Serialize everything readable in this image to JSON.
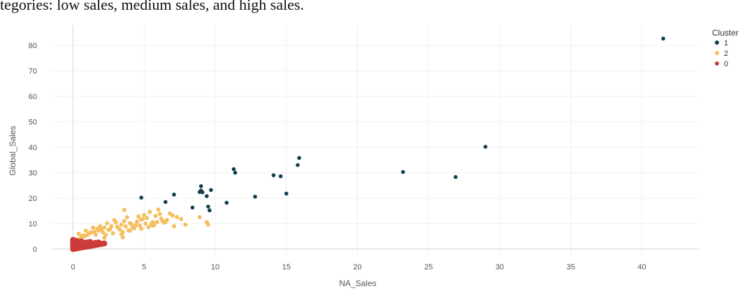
{
  "intro": {
    "text": "tegories: low sales, medium sales, and high sales."
  },
  "chart_data": {
    "type": "scatter",
    "xlabel": "NA_Sales",
    "ylabel": "Global_Sales",
    "xlim": [
      -1.5,
      44
    ],
    "ylim": [
      -2.5,
      88
    ],
    "x_ticks": [
      0,
      5,
      10,
      15,
      20,
      25,
      30,
      35,
      40
    ],
    "y_ticks": [
      0,
      10,
      20,
      30,
      40,
      50,
      60,
      70,
      80
    ],
    "grid": true,
    "legend_title": "Cluster",
    "legend_position": "top-right",
    "series": [
      {
        "name": "1",
        "color": "#143d4d",
        "x": [
          41.5,
          29.0,
          26.9,
          23.2,
          15.9,
          15.8,
          15.0,
          14.6,
          14.1,
          12.8,
          11.4,
          11.3,
          10.8,
          9.7,
          9.6,
          9.5,
          9.4,
          9.1,
          9.0,
          9.0,
          8.9,
          8.4,
          7.1,
          6.5,
          4.8
        ],
        "y": [
          82.7,
          40.2,
          28.3,
          30.3,
          35.8,
          33.0,
          21.8,
          28.6,
          29.0,
          20.6,
          30.0,
          31.4,
          18.2,
          23.2,
          15.2,
          16.7,
          20.8,
          22.3,
          24.7,
          23.0,
          22.4,
          16.3,
          21.4,
          18.5,
          20.2
        ]
      },
      {
        "name": "2",
        "color": "#f5bf5f",
        "x": [
          0.3,
          0.5,
          0.8,
          1.0,
          1.2,
          1.5,
          1.8,
          2.0,
          2.2,
          2.5,
          2.7,
          3.0,
          3.2,
          3.4,
          3.6,
          3.8,
          4.0,
          4.2,
          4.4,
          4.6,
          4.8,
          5.0,
          5.2,
          5.4,
          5.6,
          5.8,
          6.0,
          6.2,
          6.5,
          6.8,
          7.0,
          7.3,
          7.6,
          7.9,
          0.4,
          0.9,
          1.4,
          1.9,
          2.4,
          2.9,
          3.3,
          3.7,
          4.1,
          4.5,
          4.9,
          5.3,
          5.7,
          6.1,
          6.6,
          7.1,
          0.6,
          1.1,
          1.6,
          2.1,
          2.6,
          3.1,
          3.5,
          3.9,
          4.3,
          4.7,
          5.1,
          5.5,
          5.9,
          6.3,
          0.2,
          0.7,
          1.3,
          1.7,
          2.3,
          2.8,
          3.4,
          3.6,
          4.0,
          4.8,
          5.6,
          6.4,
          9.4,
          9.5,
          8.9,
          3.5,
          2.2
        ],
        "y": [
          3.6,
          4.2,
          5.0,
          5.5,
          6.3,
          6.8,
          7.2,
          7.9,
          8.5,
          7.5,
          9.0,
          10.5,
          8.2,
          9.6,
          11.0,
          12.5,
          10.2,
          8.4,
          9.4,
          12.8,
          11.6,
          13.4,
          12.2,
          14.6,
          10.6,
          13.0,
          15.5,
          12.0,
          10.6,
          14.0,
          13.2,
          12.6,
          11.8,
          9.6,
          6.0,
          7.2,
          8.4,
          9.0,
          10.2,
          11.4,
          7.6,
          8.9,
          9.8,
          10.8,
          11.8,
          8.6,
          9.4,
          13.8,
          11.4,
          9.0,
          4.8,
          6.2,
          5.6,
          6.6,
          7.8,
          8.8,
          6.6,
          7.4,
          8.2,
          9.2,
          10.0,
          9.8,
          10.6,
          11.0,
          3.1,
          5.4,
          6.6,
          8.0,
          5.6,
          6.2,
          5.8,
          15.4,
          7.2,
          8.0,
          9.2,
          10.4,
          10.6,
          9.6,
          12.5,
          4.6,
          4.4
        ]
      },
      {
        "name": "0",
        "color": "#cd3a3a",
        "x": [
          0.0,
          0.1,
          0.2,
          0.3,
          0.4,
          0.5,
          0.6,
          0.7,
          0.8,
          0.9,
          1.0,
          1.1,
          1.2,
          1.3,
          1.4,
          1.5,
          1.6,
          1.7,
          1.8,
          1.9,
          2.0,
          2.1,
          2.2,
          0.0,
          0.1,
          0.2,
          0.3,
          0.4,
          0.5,
          0.6,
          0.7,
          0.8,
          0.9,
          1.0,
          1.1,
          1.2,
          1.3,
          1.4,
          1.5,
          1.6,
          1.7,
          1.8,
          0.0,
          0.1,
          0.2,
          0.3,
          0.4,
          0.5,
          0.6,
          0.7,
          0.8,
          0.9,
          1.0,
          1.1,
          1.2,
          0.0,
          0.1,
          0.2,
          0.3,
          0.4,
          0.5,
          0.6,
          0.0,
          0.1,
          0.2,
          0.0
        ],
        "y": [
          0.0,
          0.1,
          0.2,
          0.3,
          0.4,
          0.5,
          0.6,
          0.7,
          0.8,
          0.9,
          1.0,
          1.1,
          1.2,
          1.3,
          1.4,
          1.5,
          1.6,
          1.7,
          1.8,
          1.9,
          2.0,
          2.1,
          2.2,
          0.8,
          0.9,
          1.0,
          1.1,
          1.2,
          1.3,
          1.4,
          1.5,
          1.6,
          1.7,
          1.8,
          1.9,
          2.0,
          2.1,
          2.2,
          2.3,
          2.4,
          2.5,
          2.6,
          1.6,
          1.7,
          1.8,
          1.9,
          2.0,
          2.1,
          2.2,
          2.3,
          2.4,
          2.5,
          2.6,
          2.7,
          2.8,
          2.4,
          2.5,
          2.6,
          2.7,
          2.8,
          2.9,
          3.0,
          3.1,
          3.2,
          3.3,
          3.6
        ]
      }
    ]
  }
}
